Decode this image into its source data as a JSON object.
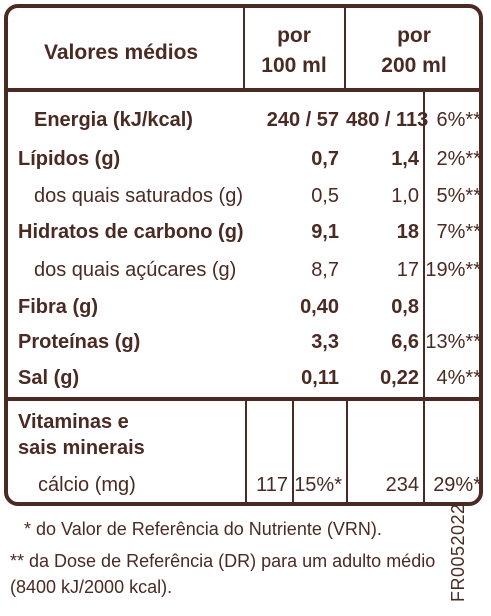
{
  "header": {
    "col_name": "Valores médios",
    "col_100_line1": "por",
    "col_100_line2": "100 ml",
    "col_200_line1": "por",
    "col_200_line2": "200 ml"
  },
  "rows": [
    {
      "label": "Energia (kJ/kcal)",
      "per100": "240 / 57",
      "per200": "480 / 113",
      "pct": "6%**",
      "bold": true
    },
    {
      "label": "Lípidos (g)",
      "per100": "0,7",
      "per200": "1,4",
      "pct": "2%**",
      "bold": true
    },
    {
      "label": "dos quais saturados (g)",
      "per100": "0,5",
      "per200": "1,0",
      "pct": "5%**",
      "bold": false
    },
    {
      "label": "Hidratos de carbono (g)",
      "per100": "9,1",
      "per200": "18",
      "pct": "7%**",
      "bold": true
    },
    {
      "label": "dos quais açúcares (g)",
      "per100": "8,7",
      "per200": "17",
      "pct": "19%**",
      "bold": false
    },
    {
      "label": "Fibra (g)",
      "per100": "0,40",
      "per200": "0,8",
      "pct": "",
      "bold": true
    },
    {
      "label": "Proteínas (g)",
      "per100": "3,3",
      "per200": "6,6",
      "pct": "13%**",
      "bold": true
    },
    {
      "label": "Sal (g)",
      "per100": "0,11",
      "per200": "0,22",
      "pct": "4%**",
      "bold": true
    }
  ],
  "vitamins": {
    "title_line1": "Vitaminas e",
    "title_line2": "sais minerais",
    "item_label": "cálcio (mg)",
    "per100": "117",
    "per100_pct": "15%*",
    "per200": "234",
    "per200_pct": "29%*"
  },
  "footer": {
    "note1": "* do Valor de Referência do Nutriente (VRN).",
    "note2": "** da Dose de Referência (DR) para um adulto médio",
    "note3": "(8400 kJ/2000 kcal).",
    "code": "FR0052022"
  },
  "colors": {
    "text": "#4a2a22",
    "background": "#ffffff"
  }
}
